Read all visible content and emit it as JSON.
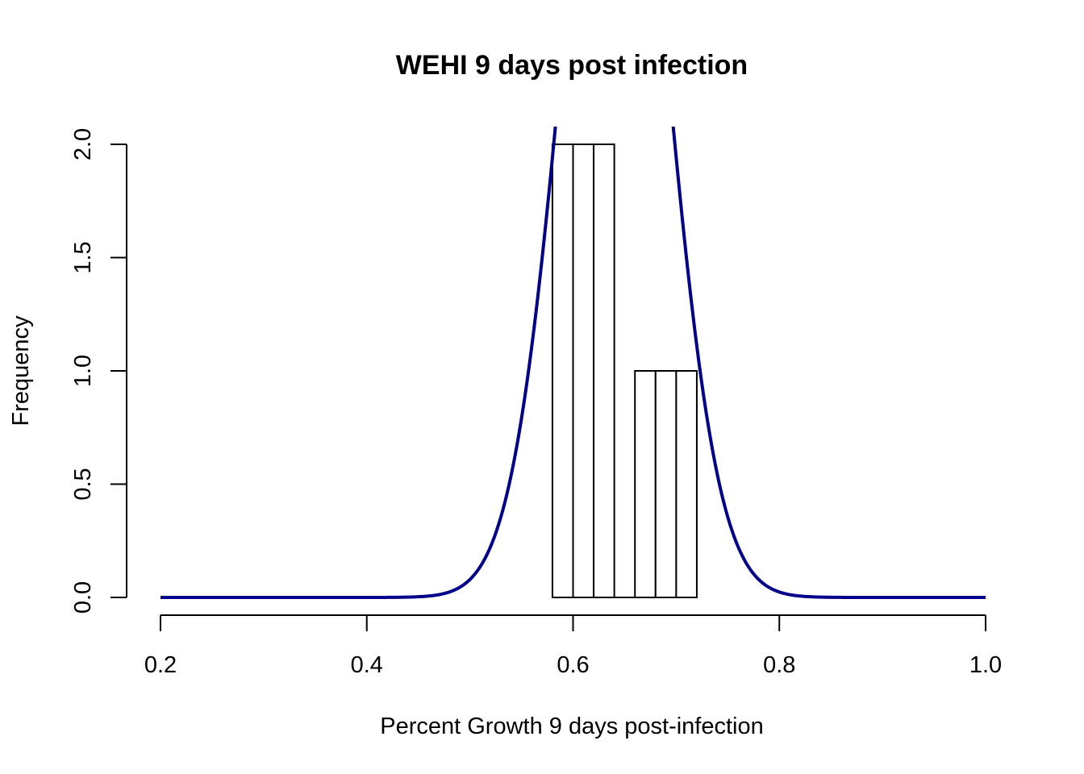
{
  "chart_data": {
    "type": "bar",
    "title": "WEHI 9 days post infection",
    "xlabel": "Percent Growth 9 days post-infection",
    "ylabel": "Frequency",
    "xlim": [
      0.2,
      1.0
    ],
    "ylim": [
      0,
      2
    ],
    "x_ticks": [
      "0.2",
      "0.4",
      "0.6",
      "0.8",
      "1.0"
    ],
    "y_ticks": [
      "0.0",
      "0.5",
      "1.0",
      "1.5",
      "2.0"
    ],
    "bins": [
      {
        "x0": 0.58,
        "x1": 0.6,
        "count": 2
      },
      {
        "x0": 0.6,
        "x1": 0.62,
        "count": 2
      },
      {
        "x0": 0.62,
        "x1": 0.64,
        "count": 2
      },
      {
        "x0": 0.64,
        "x1": 0.66,
        "count": 0
      },
      {
        "x0": 0.66,
        "x1": 0.68,
        "count": 1
      },
      {
        "x0": 0.68,
        "x1": 0.7,
        "count": 1
      },
      {
        "x0": 0.7,
        "x1": 0.72,
        "count": 1
      }
    ],
    "density_curve": {
      "color": "#00008B",
      "mean": 0.64,
      "sd": 0.05,
      "scale": 0.5,
      "x_from": 0.2,
      "x_to": 1.0
    },
    "grid": false
  }
}
